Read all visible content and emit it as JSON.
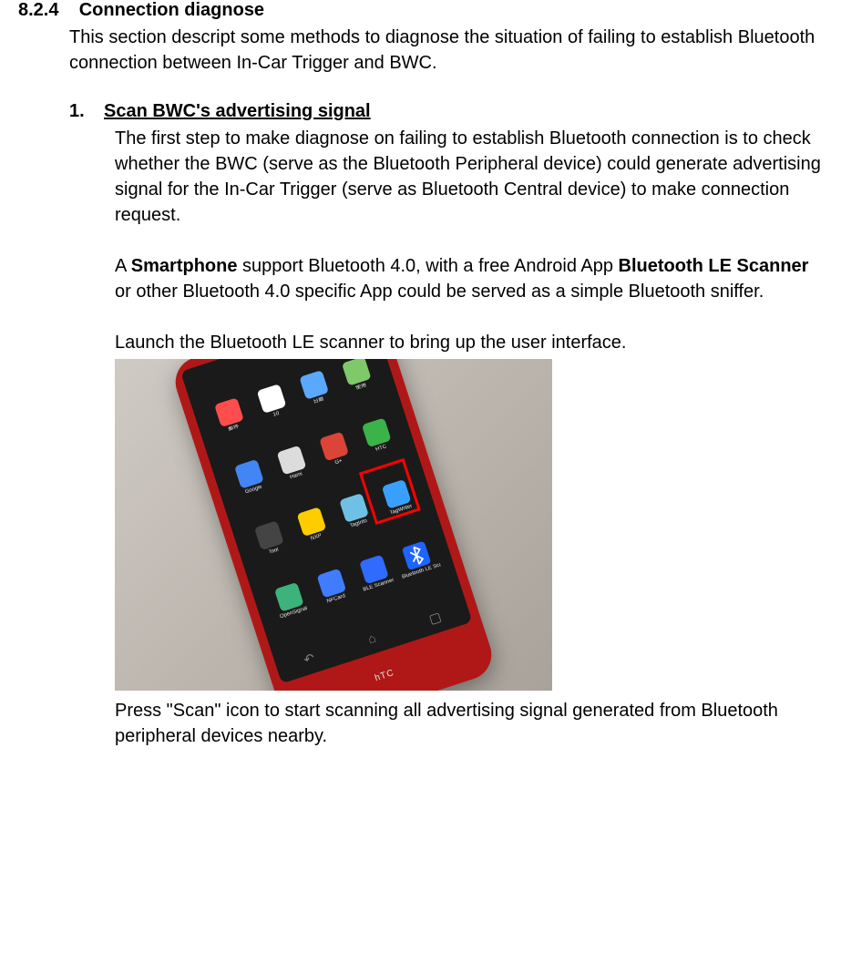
{
  "section": {
    "number": "8.2.4",
    "title": "Connection diagnose",
    "intro": "This section descript some methods to diagnose the situation of failing to establish Bluetooth connection between In-Car Trigger and BWC."
  },
  "step": {
    "number": "1.",
    "title": "Scan BWC's advertising signal",
    "para1": "The first step to make diagnose on failing to establish Bluetooth connection is to check whether the BWC (serve as the Bluetooth Peripheral device) could generate advertising signal for the In-Car Trigger (serve as Bluetooth Central device) to make connection request.",
    "para2_a": "A ",
    "para2_bold1": "Smartphone",
    "para2_b": " support Bluetooth 4.0, with a free Android App ",
    "para2_bold2": "Bluetooth LE Scanner",
    "para2_c": " or other Bluetooth 4.0 specific App could be served as a simple Bluetooth sniffer.",
    "para3": "Launch the Bluetooth LE scanner to bring up the user interface.",
    "para4": "Press \"Scan\" icon to start scanning all advertising signal generated from Bluetooth peripheral devices nearby."
  },
  "phone": {
    "brand": "hTC",
    "highlighted_app": "Bluetooth LE Scanner",
    "apps": [
      {
        "label": "郵件",
        "color": "#ff4d4d"
      },
      {
        "label": "10",
        "color": "#ffffff"
      },
      {
        "label": "日曆",
        "color": "#5aa8ff"
      },
      {
        "label": "使用",
        "color": "#7fc96b"
      },
      {
        "label": "Google",
        "color": "#4285f4"
      },
      {
        "label": "Hami",
        "color": "#dcdcdc"
      },
      {
        "label": "G+",
        "color": "#db4437"
      },
      {
        "label": "HTC",
        "color": "#3bb34a"
      },
      {
        "label": "Tool",
        "color": "#444444"
      },
      {
        "label": "NXP",
        "color": "#ffcc00"
      },
      {
        "label": "TagInfo",
        "color": "#6ec1e4"
      },
      {
        "label": "TagWriter",
        "color": "#3aa0ff"
      },
      {
        "label": "OpenSignal",
        "color": "#3bb37a"
      },
      {
        "label": "NFCard",
        "color": "#3f7cff"
      },
      {
        "label": "BLE Scanner",
        "color": "#2f6bff"
      },
      {
        "label": "Bluetooth LE\nScanner",
        "color": "#1e64ff"
      }
    ],
    "nav": {
      "back": "↶",
      "home": "⌂",
      "recent": "▢"
    }
  }
}
